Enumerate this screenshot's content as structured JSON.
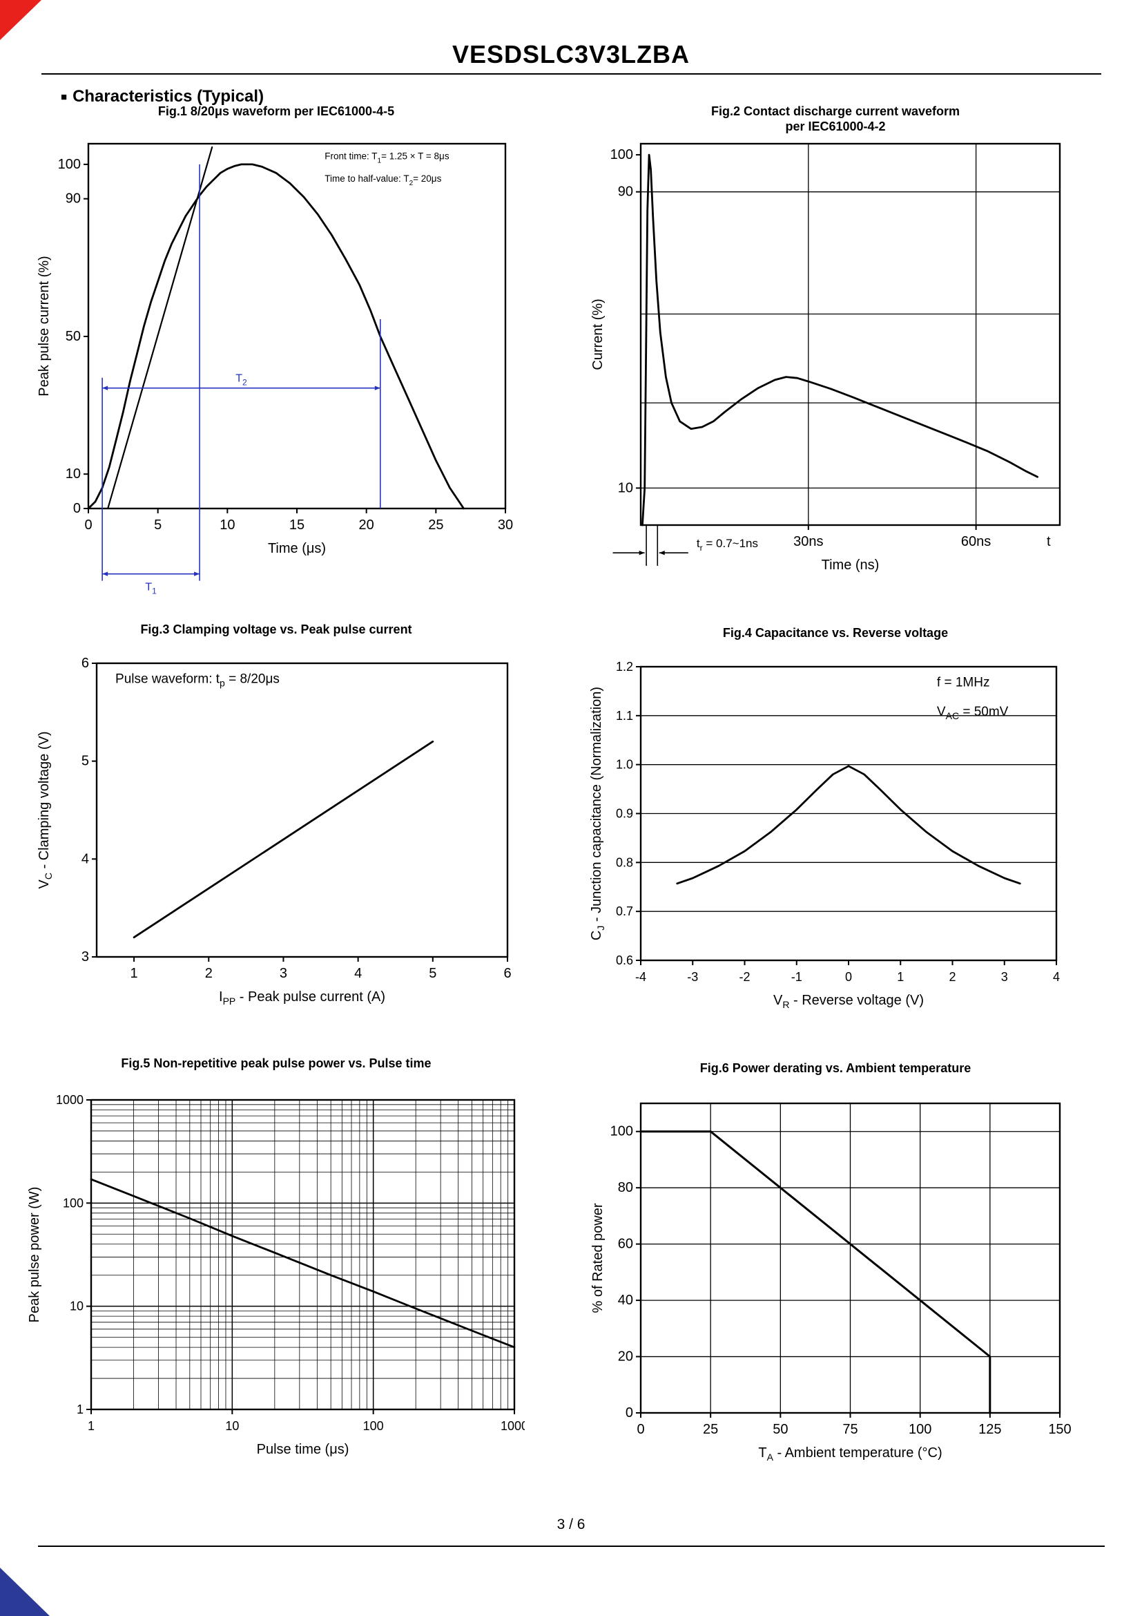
{
  "page": {
    "header_title": "VESDSLC3V3LZBA",
    "section_bullet": "■",
    "section_title": "Characteristics (Typical)",
    "page_number": "3 / 6",
    "annotation_blue": "#2633c0"
  },
  "chart_data": [
    {
      "type": "line",
      "title": "Fig.1 8/20μs waveform per IEC61000-4-5",
      "xlabel": "Time (μs)",
      "ylabel": "Peak pulse current (%)",
      "xlim": [
        0,
        30
      ],
      "ylim": [
        0,
        106
      ],
      "xticks": [
        {
          "v": 0,
          "l": "0"
        },
        {
          "v": 5,
          "l": "5"
        },
        {
          "v": 10,
          "l": "10"
        },
        {
          "v": 15,
          "l": "15"
        },
        {
          "v": 20,
          "l": "20"
        },
        {
          "v": 25,
          "l": "25"
        },
        {
          "v": 30,
          "l": "30"
        }
      ],
      "yticks": [
        {
          "v": 0,
          "l": "0"
        },
        {
          "v": 10,
          "l": "10"
        },
        {
          "v": 50,
          "l": "50"
        },
        {
          "v": 90,
          "l": "90"
        },
        {
          "v": 100,
          "l": "100"
        }
      ],
      "series": [
        {
          "name": "surge-waveform",
          "width": 2.8,
          "points": [
            [
              0,
              0
            ],
            [
              0.5,
              2
            ],
            [
              1,
              6
            ],
            [
              1.5,
              12
            ],
            [
              2,
              20
            ],
            [
              2.5,
              28
            ],
            [
              3,
              37
            ],
            [
              3.5,
              45
            ],
            [
              4,
              53
            ],
            [
              4.5,
              60
            ],
            [
              5,
              66
            ],
            [
              5.5,
              72
            ],
            [
              6,
              77
            ],
            [
              6.5,
              81
            ],
            [
              7,
              85
            ],
            [
              7.5,
              88
            ],
            [
              8,
              91
            ],
            [
              8.5,
              93.5
            ],
            [
              9,
              95.5
            ],
            [
              9.5,
              97.5
            ],
            [
              10,
              98.7
            ],
            [
              10.5,
              99.5
            ],
            [
              11,
              100
            ],
            [
              11.8,
              100
            ],
            [
              12.5,
              99.3
            ],
            [
              13.5,
              97.5
            ],
            [
              14.5,
              94.5
            ],
            [
              15.5,
              90.5
            ],
            [
              16.5,
              85.5
            ],
            [
              17.5,
              79.5
            ],
            [
              18.5,
              72.5
            ],
            [
              19.5,
              65
            ],
            [
              20.3,
              57.5
            ],
            [
              21,
              50
            ],
            [
              22,
              41
            ],
            [
              23,
              32
            ],
            [
              24,
              23
            ],
            [
              25,
              14
            ],
            [
              26,
              6
            ],
            [
              27,
              0
            ]
          ]
        },
        {
          "name": "front-time-tangent",
          "width": 2.2,
          "points": [
            [
              1.4,
              0
            ],
            [
              8.9,
              105
            ]
          ]
        }
      ],
      "annotations": [
        {
          "type": "text",
          "x": 17,
          "y": 101.5,
          "text": "Front time: T_{1}= 1.25 × T = 8μs",
          "size": 13.5
        },
        {
          "type": "text",
          "x": 17,
          "y": 95,
          "text": "Time to half-value: T_{2}= 20μs",
          "size": 13.5
        },
        {
          "type": "vline",
          "x": 1,
          "y1": -21,
          "y2": 38,
          "color": "#2633c0"
        },
        {
          "type": "vline",
          "x": 8,
          "y1": -21,
          "y2": 100,
          "color": "#2633c0"
        },
        {
          "type": "vline",
          "x": 21,
          "y1": 0,
          "y2": 55,
          "color": "#2633c0"
        },
        {
          "type": "harrow",
          "x1": 1,
          "x2": 21,
          "y": 35,
          "label": "T_{2}",
          "color": "#2633c0"
        },
        {
          "type": "harrow",
          "x1": 1,
          "x2": 8,
          "y": -19,
          "label": "T_{1}",
          "labelpos": "below",
          "color": "#2633c0"
        }
      ]
    },
    {
      "type": "line",
      "title": "Fig.2 Contact discharge current waveform",
      "title2": "per IEC61000-4-2",
      "xlabel": "Time (ns)",
      "ylabel": "Current (%)",
      "xlim": [
        0,
        75
      ],
      "ylim": [
        0,
        103
      ],
      "xticks": [
        {
          "v": 30,
          "l": "30ns"
        },
        {
          "v": 60,
          "l": "60ns"
        },
        {
          "v": 73,
          "l": "t",
          "tick": false
        }
      ],
      "yticks": [
        {
          "v": 100,
          "l": "100"
        },
        {
          "v": 90,
          "l": "90"
        },
        {
          "v": 10,
          "l": "10"
        }
      ],
      "grid": {
        "x": [
          30,
          60
        ],
        "y": [
          90,
          57,
          33,
          10
        ]
      },
      "series": [
        {
          "name": "esd-current",
          "width": 2.8,
          "points": [
            [
              0.3,
              0
            ],
            [
              0.7,
              10
            ],
            [
              1,
              55
            ],
            [
              1.2,
              85
            ],
            [
              1.5,
              100
            ],
            [
              1.8,
              96
            ],
            [
              2.2,
              83
            ],
            [
              2.8,
              66
            ],
            [
              3.5,
              52
            ],
            [
              4.5,
              40
            ],
            [
              5.5,
              33
            ],
            [
              7,
              28
            ],
            [
              9,
              26
            ],
            [
              11,
              26.5
            ],
            [
              13,
              28
            ],
            [
              15,
              30.5
            ],
            [
              18,
              34
            ],
            [
              21,
              37
            ],
            [
              24,
              39.2
            ],
            [
              26,
              40
            ],
            [
              28,
              39.7
            ],
            [
              30,
              38.8
            ],
            [
              34,
              36.8
            ],
            [
              38,
              34.5
            ],
            [
              43,
              31.5
            ],
            [
              48,
              28.5
            ],
            [
              53,
              25.5
            ],
            [
              58,
              22.5
            ],
            [
              62,
              20
            ],
            [
              66,
              17
            ],
            [
              69,
              14.5
            ],
            [
              71,
              13
            ]
          ]
        }
      ],
      "annotations": [
        {
          "type": "vline",
          "x": 1,
          "y1": -11,
          "y2": 0,
          "color": "#000000"
        },
        {
          "type": "vline",
          "x": 3,
          "y1": -11,
          "y2": 0,
          "color": "#000000"
        },
        {
          "type": "arrow",
          "x1": -5,
          "y1": -7.5,
          "x2": 0.7,
          "y2": -7.5,
          "color": "#000000"
        },
        {
          "type": "arrow",
          "x1": 8.5,
          "y1": -7.5,
          "x2": 3.3,
          "y2": -7.5,
          "color": "#000000"
        },
        {
          "type": "text",
          "x": 10,
          "y": -6,
          "text": "t_{r} = 0.7~1ns",
          "size": 17
        }
      ]
    },
    {
      "type": "line",
      "title": "Fig.3 Clamping voltage vs. Peak pulse current",
      "xlabel": "I_{PP} - Peak pulse current (A)",
      "ylabel": "V_{C} - Clamping voltage (V)",
      "xlim": [
        0.5,
        6
      ],
      "ylim": [
        3,
        6
      ],
      "xticks": [
        {
          "v": 1,
          "l": "1"
        },
        {
          "v": 2,
          "l": "2"
        },
        {
          "v": 3,
          "l": "3"
        },
        {
          "v": 4,
          "l": "4"
        },
        {
          "v": 5,
          "l": "5"
        },
        {
          "v": 6,
          "l": "6"
        }
      ],
      "yticks": [
        {
          "v": 3,
          "l": "3"
        },
        {
          "v": 4,
          "l": "4"
        },
        {
          "v": 5,
          "l": "5"
        },
        {
          "v": 6,
          "l": "6"
        }
      ],
      "series": [
        {
          "name": "clamping-voltage",
          "width": 2.8,
          "points": [
            [
              1,
              3.2
            ],
            [
              5,
              5.2
            ]
          ]
        }
      ],
      "annotations": [
        {
          "type": "text",
          "x": 0.75,
          "y": 5.8,
          "text": "Pulse waveform: t_{p} = 8/20μs",
          "size": 19
        }
      ]
    },
    {
      "type": "line",
      "title": "Fig.4 Capacitance vs. Reverse voltage",
      "xlabel": "V_{R} - Reverse voltage (V)",
      "ylabel": "C_{J} - Junction capacitance (Normalization)",
      "xlim": [
        -4,
        4
      ],
      "ylim": [
        0.6,
        1.2
      ],
      "xticks": [
        {
          "v": -4,
          "l": "-4"
        },
        {
          "v": -3,
          "l": "-3"
        },
        {
          "v": -2,
          "l": "-2"
        },
        {
          "v": -1,
          "l": "-1"
        },
        {
          "v": 0,
          "l": "0"
        },
        {
          "v": 1,
          "l": "1"
        },
        {
          "v": 2,
          "l": "2"
        },
        {
          "v": 3,
          "l": "3"
        },
        {
          "v": 4,
          "l": "4"
        }
      ],
      "yticks": [
        {
          "v": 0.6,
          "l": "0.6"
        },
        {
          "v": 0.7,
          "l": "0.7"
        },
        {
          "v": 0.8,
          "l": "0.8"
        },
        {
          "v": 0.9,
          "l": "0.9"
        },
        {
          "v": 1.0,
          "l": "1.0"
        },
        {
          "v": 1.1,
          "l": "1.1"
        },
        {
          "v": 1.2,
          "l": "1.2"
        }
      ],
      "grid": {
        "y": [
          0.7,
          0.8,
          0.9,
          1.0,
          1.1
        ]
      },
      "series": [
        {
          "name": "junction-capacitance",
          "width": 2.8,
          "points": [
            [
              -3.3,
              0.757
            ],
            [
              -3,
              0.768
            ],
            [
              -2.5,
              0.793
            ],
            [
              -2,
              0.823
            ],
            [
              -1.5,
              0.862
            ],
            [
              -1,
              0.908
            ],
            [
              -0.6,
              0.95
            ],
            [
              -0.3,
              0.98
            ],
            [
              0,
              0.997
            ],
            [
              0.3,
              0.98
            ],
            [
              0.6,
              0.95
            ],
            [
              1,
              0.908
            ],
            [
              1.5,
              0.862
            ],
            [
              2,
              0.823
            ],
            [
              2.5,
              0.793
            ],
            [
              3,
              0.768
            ],
            [
              3.3,
              0.757
            ]
          ]
        }
      ],
      "annotations": [
        {
          "type": "text",
          "x": 1.7,
          "y": 1.16,
          "text": "f = 1MHz",
          "size": 19
        },
        {
          "type": "text",
          "x": 1.7,
          "y": 1.1,
          "text": "V_{AC} = 50mV",
          "size": 19
        }
      ]
    },
    {
      "type": "line",
      "title": "Fig.5 Non-repetitive peak pulse power vs. Pulse time",
      "xlabel": "Pulse time (μs)",
      "ylabel": "Peak pulse power (W)",
      "xscale": "log",
      "yscale": "log",
      "xlim": [
        1,
        1000
      ],
      "ylim": [
        1,
        1000
      ],
      "xticks": [
        {
          "v": 1,
          "l": "1"
        },
        {
          "v": 10,
          "l": "10"
        },
        {
          "v": 100,
          "l": "100"
        },
        {
          "v": 1000,
          "l": "1000"
        }
      ],
      "yticks": [
        {
          "v": 1,
          "l": "1"
        },
        {
          "v": 10,
          "l": "10"
        },
        {
          "v": 100,
          "l": "100"
        },
        {
          "v": 1000,
          "l": "1000"
        }
      ],
      "grid": {
        "log": true
      },
      "series": [
        {
          "name": "peak-pulse-power",
          "width": 2.8,
          "points": [
            [
              1,
              170
            ],
            [
              2,
              117
            ],
            [
              5,
              71
            ],
            [
              10,
              48
            ],
            [
              20,
              33
            ],
            [
              50,
              20
            ],
            [
              100,
              13.9
            ],
            [
              200,
              9.5
            ],
            [
              500,
              5.8
            ],
            [
              1000,
              4
            ]
          ]
        }
      ],
      "annotations": []
    },
    {
      "type": "line",
      "title": "Fig.6 Power derating vs. Ambient temperature",
      "xlabel": "T_{A} - Ambient temperature (°C)",
      "ylabel": "% of Rated power",
      "xlim": [
        0,
        150
      ],
      "ylim": [
        0,
        110
      ],
      "xticks": [
        {
          "v": 0,
          "l": "0"
        },
        {
          "v": 25,
          "l": "25"
        },
        {
          "v": 50,
          "l": "50"
        },
        {
          "v": 75,
          "l": "75"
        },
        {
          "v": 100,
          "l": "100"
        },
        {
          "v": 125,
          "l": "125"
        },
        {
          "v": 150,
          "l": "150"
        }
      ],
      "yticks": [
        {
          "v": 0,
          "l": "0"
        },
        {
          "v": 20,
          "l": "20"
        },
        {
          "v": 40,
          "l": "40"
        },
        {
          "v": 60,
          "l": "60"
        },
        {
          "v": 80,
          "l": "80"
        },
        {
          "v": 100,
          "l": "100"
        }
      ],
      "grid": {
        "x": [
          25,
          50,
          75,
          100,
          125
        ],
        "y": [
          20,
          40,
          60,
          80,
          100
        ]
      },
      "series": [
        {
          "name": "power-derating",
          "width": 3,
          "points": [
            [
              0,
              100
            ],
            [
              25,
              100
            ],
            [
              125,
              20
            ],
            [
              125,
              0
            ]
          ]
        }
      ],
      "annotations": []
    }
  ]
}
